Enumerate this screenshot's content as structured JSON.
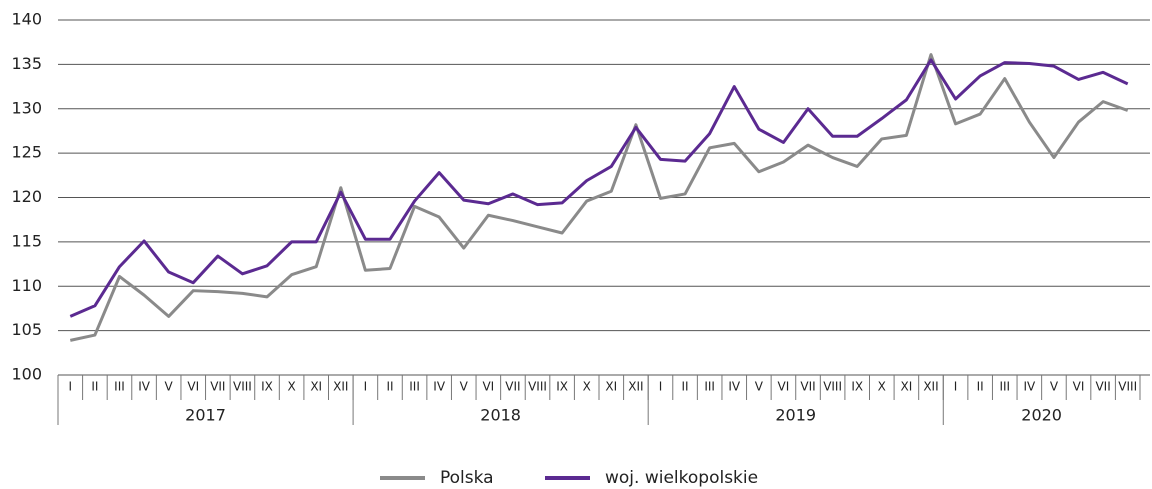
{
  "chart_data": {
    "type": "line",
    "categories": [
      "I",
      "II",
      "III",
      "IV",
      "V",
      "VI",
      "VII",
      "VIII",
      "IX",
      "X",
      "XI",
      "XII",
      "I",
      "II",
      "III",
      "IV",
      "V",
      "VI",
      "VII",
      "VIII",
      "IX",
      "X",
      "XI",
      "XII",
      "I",
      "II",
      "III",
      "IV",
      "V",
      "VI",
      "VII",
      "VIII",
      "IX",
      "X",
      "XI",
      "XII",
      "I",
      "II",
      "III",
      "IV",
      "V",
      "VI",
      "VII",
      "VIII"
    ],
    "category_groups": [
      {
        "label": "2017",
        "count": 12
      },
      {
        "label": "2018",
        "count": 12
      },
      {
        "label": "2019",
        "count": 12
      },
      {
        "label": "2020",
        "count": 8
      }
    ],
    "series": [
      {
        "name": "Polska",
        "color": "#8a8a8a",
        "values": [
          103.9,
          104.5,
          111.1,
          109.0,
          106.6,
          109.5,
          109.4,
          109.2,
          108.8,
          111.3,
          112.2,
          121.1,
          111.8,
          112.0,
          119.0,
          117.8,
          114.3,
          118.0,
          117.4,
          116.7,
          116.0,
          119.6,
          120.7,
          128.2,
          119.9,
          120.4,
          125.6,
          126.1,
          122.9,
          124.0,
          125.9,
          124.5,
          123.5,
          126.6,
          127.0,
          136.1,
          128.3,
          129.4,
          133.4,
          128.5,
          124.5,
          128.5,
          130.8,
          129.8
        ]
      },
      {
        "name": "woj. wielkopolskie",
        "color": "#5b2a91",
        "values": [
          106.6,
          107.8,
          112.2,
          115.1,
          111.6,
          110.4,
          113.4,
          111.4,
          112.3,
          115.0,
          115.0,
          120.6,
          115.3,
          115.3,
          119.6,
          122.8,
          119.7,
          119.3,
          120.4,
          119.2,
          119.4,
          121.9,
          123.5,
          127.9,
          124.3,
          124.1,
          127.2,
          132.5,
          127.7,
          126.2,
          130.0,
          126.9,
          126.9,
          128.9,
          131.0,
          135.5,
          131.1,
          133.7,
          135.2,
          135.1,
          134.8,
          133.3,
          134.1,
          132.8
        ]
      }
    ],
    "ylim": [
      100,
      140
    ],
    "yticks": [
      100,
      105,
      110,
      115,
      120,
      125,
      130,
      135,
      140
    ],
    "grid": true,
    "legend": "bottom"
  }
}
